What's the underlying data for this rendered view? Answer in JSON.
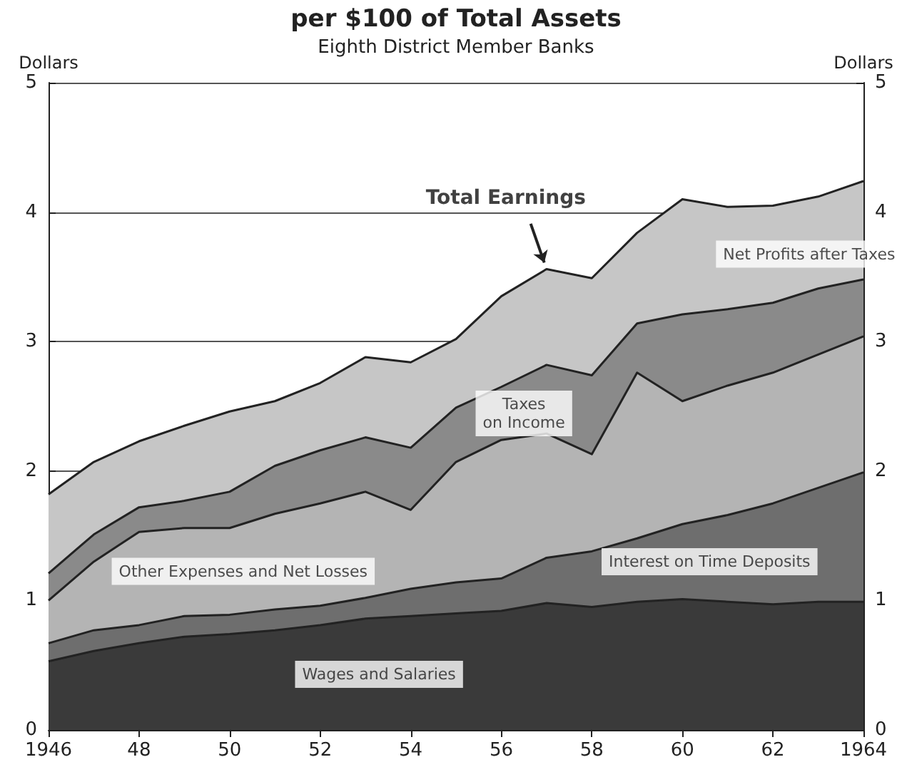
{
  "chart_data": {
    "type": "area",
    "title": "per $100 of Total Assets",
    "subtitle": "Eighth District Member Banks",
    "ylabel": "Dollars",
    "y2label": "Dollars",
    "stacked": true,
    "grid": "y",
    "legend": false,
    "x": [
      1946,
      1947,
      1948,
      1949,
      1950,
      1951,
      1952,
      1953,
      1954,
      1955,
      1956,
      1957,
      1958,
      1959,
      1960,
      1961,
      1962,
      1963,
      1964
    ],
    "xlim": [
      1946,
      1964
    ],
    "xticks": [
      {
        "value": 1946,
        "label": "1946"
      },
      {
        "value": 1948,
        "label": "48"
      },
      {
        "value": 1950,
        "label": "50"
      },
      {
        "value": 1952,
        "label": "52"
      },
      {
        "value": 1954,
        "label": "54"
      },
      {
        "value": 1956,
        "label": "56"
      },
      {
        "value": 1958,
        "label": "58"
      },
      {
        "value": 1960,
        "label": "60"
      },
      {
        "value": 1962,
        "label": "62"
      },
      {
        "value": 1964,
        "label": "1964"
      }
    ],
    "ylim": [
      0,
      5
    ],
    "yticks": [
      0,
      1,
      2,
      3,
      4,
      5
    ],
    "y2lim": [
      0,
      5
    ],
    "y2ticks": [
      0,
      1,
      2,
      3,
      4,
      5
    ],
    "series": [
      {
        "name": "Wages and Salaries",
        "color": "#3a3a3a",
        "values": [
          0.53,
          0.61,
          0.67,
          0.72,
          0.74,
          0.77,
          0.81,
          0.86,
          0.88,
          0.9,
          0.92,
          0.98,
          0.95,
          0.99,
          1.01,
          0.99,
          0.97,
          0.99,
          0.99
        ]
      },
      {
        "name": "Interest on Time Deposits",
        "color": "#6e6e6e",
        "values": [
          0.14,
          0.16,
          0.14,
          0.16,
          0.15,
          0.16,
          0.15,
          0.16,
          0.21,
          0.24,
          0.25,
          0.35,
          0.43,
          0.49,
          0.58,
          0.67,
          0.78,
          0.88,
          1.0
        ]
      },
      {
        "name": "Other Expenses and Net Losses",
        "color": "#b4b4b4",
        "values": [
          0.33,
          0.53,
          0.72,
          0.68,
          0.67,
          0.74,
          0.79,
          0.82,
          0.61,
          0.93,
          1.07,
          0.96,
          0.75,
          1.28,
          0.95,
          1.0,
          1.01,
          1.03,
          1.05
        ]
      },
      {
        "name": "Taxes\non Income",
        "color": "#8a8a8a",
        "values": [
          0.21,
          0.21,
          0.19,
          0.21,
          0.28,
          0.37,
          0.41,
          0.42,
          0.48,
          0.42,
          0.41,
          0.53,
          0.61,
          0.38,
          0.67,
          0.59,
          0.54,
          0.51,
          0.44
        ]
      },
      {
        "name": "Net Profits after Taxes",
        "color": "#c6c6c6",
        "values": [
          0.61,
          0.56,
          0.51,
          0.58,
          0.62,
          0.5,
          0.52,
          0.62,
          0.66,
          0.53,
          0.7,
          0.74,
          0.75,
          0.7,
          0.89,
          0.79,
          0.75,
          0.71,
          0.76
        ]
      }
    ],
    "annotations": [
      {
        "text": "Total Earnings",
        "x": 1957,
        "y": 3.56
      }
    ]
  }
}
